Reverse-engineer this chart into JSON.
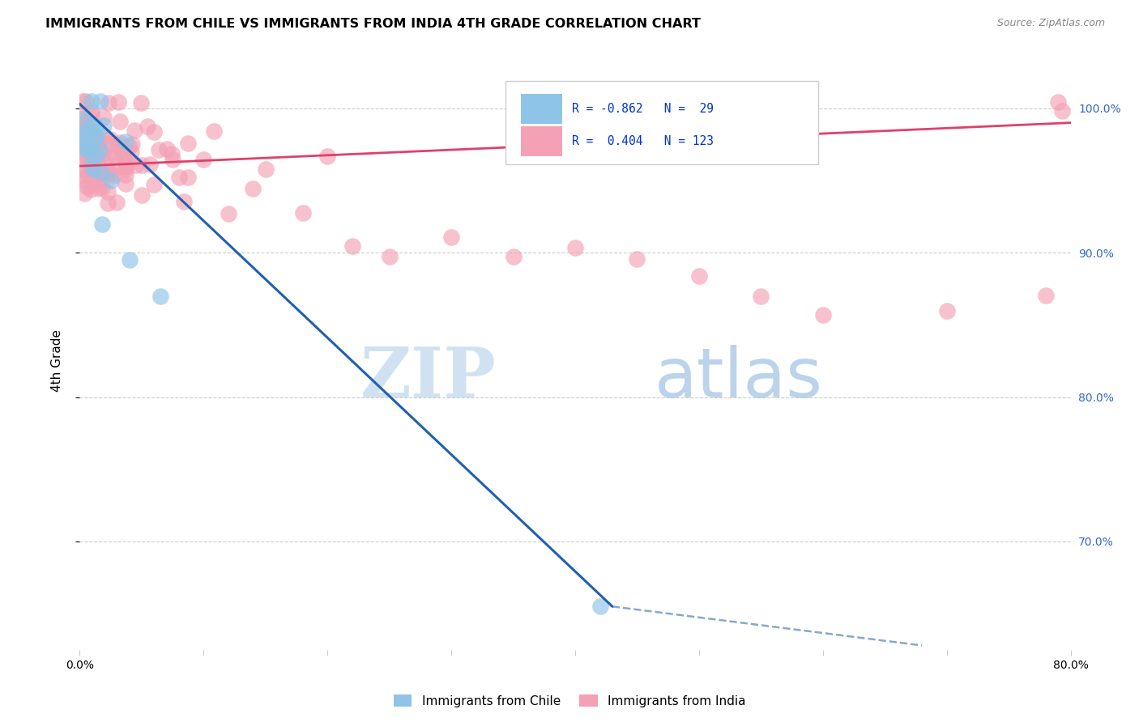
{
  "title": "IMMIGRANTS FROM CHILE VS IMMIGRANTS FROM INDIA 4TH GRADE CORRELATION CHART",
  "source": "Source: ZipAtlas.com",
  "ylabel": "4th Grade",
  "right_ytick_labels": [
    "100.0%",
    "90.0%",
    "80.0%",
    "70.0%"
  ],
  "right_ytick_vals": [
    1.0,
    0.9,
    0.8,
    0.7
  ],
  "xlim": [
    0.0,
    0.8
  ],
  "ylim": [
    0.625,
    1.025
  ],
  "chile_R": -0.862,
  "chile_N": 29,
  "india_R": 0.404,
  "india_N": 123,
  "chile_color": "#8ec4e8",
  "india_color": "#f4a0b5",
  "chile_line_color": "#2060b0",
  "india_line_color": "#e0406a",
  "watermark_zip": "ZIP",
  "watermark_atlas": "atlas",
  "seed": 42
}
